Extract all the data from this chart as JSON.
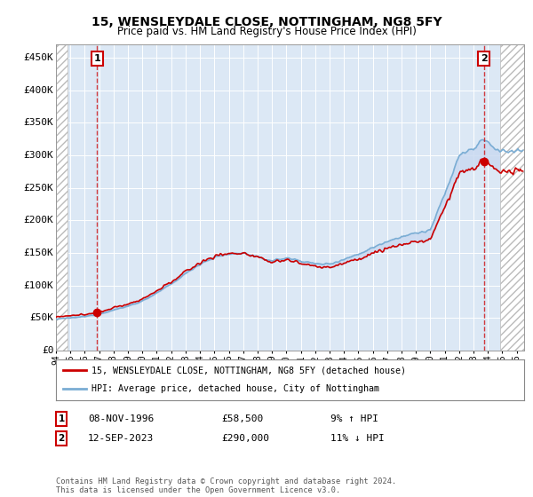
{
  "title": "15, WENSLEYDALE CLOSE, NOTTINGHAM, NG8 5FY",
  "subtitle": "Price paid vs. HM Land Registry's House Price Index (HPI)",
  "ylim": [
    0,
    470000
  ],
  "xlim_start": 1994.0,
  "xlim_end": 2026.5,
  "yticks": [
    0,
    50000,
    100000,
    150000,
    200000,
    250000,
    300000,
    350000,
    400000,
    450000
  ],
  "ytick_labels": [
    "£0",
    "£50K",
    "£100K",
    "£150K",
    "£200K",
    "£250K",
    "£300K",
    "£350K",
    "£400K",
    "£450K"
  ],
  "sale1_x": 1996.86,
  "sale1_y": 58500,
  "sale2_x": 2023.71,
  "sale2_y": 290000,
  "sale1_date": "08-NOV-1996",
  "sale1_price": "£58,500",
  "sale1_hpi": "9% ↑ HPI",
  "sale2_date": "12-SEP-2023",
  "sale2_price": "£290,000",
  "sale2_hpi": "11% ↓ HPI",
  "line1_color": "#cc0000",
  "line2_color": "#7aadd4",
  "fill_color": "#c8d8f0",
  "background_color": "#ffffff",
  "plot_bg_color": "#dce8f5",
  "grid_color": "#ffffff",
  "legend_line1": "15, WENSLEYDALE CLOSE, NOTTINGHAM, NG8 5FY (detached house)",
  "legend_line2": "HPI: Average price, detached house, City of Nottingham",
  "footer": "Contains HM Land Registry data © Crown copyright and database right 2024.\nThis data is licensed under the Open Government Licence v3.0."
}
